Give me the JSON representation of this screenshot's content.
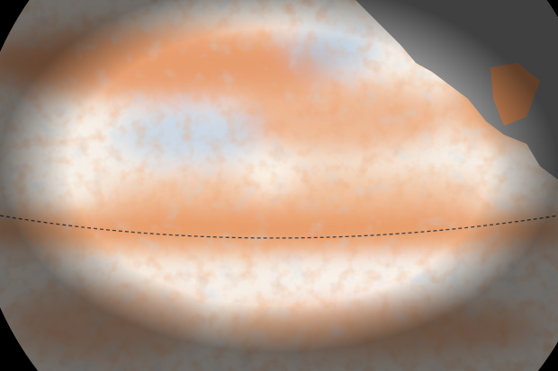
{
  "image": {
    "subject": "globe",
    "colors": {
      "background": "#000000",
      "neutral_ocean": "#f6efe6",
      "warm_anomaly": "#e07a3c",
      "strong_warm": "#c8452a",
      "cool_anomaly": "#9fbedd",
      "land": "#8c8c8c"
    }
  }
}
